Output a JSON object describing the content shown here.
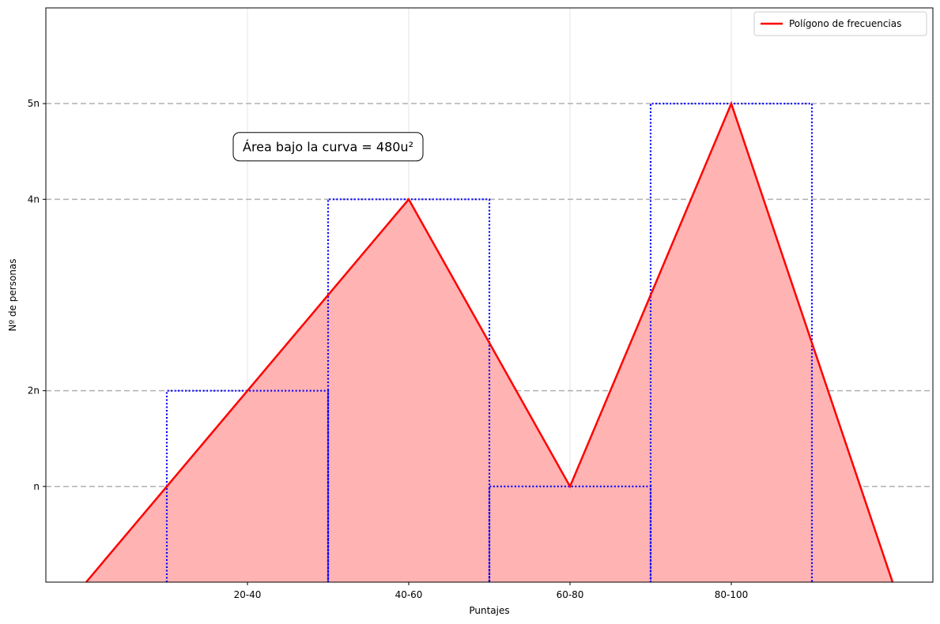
{
  "chart_data": {
    "type": "area",
    "title": "",
    "xlabel": "Puntajes",
    "ylabel": "Nº de personas",
    "xlim": [
      -10,
      100
    ],
    "ylim": [
      0,
      6
    ],
    "x_ticks": [
      {
        "value": 15,
        "label": "20-40"
      },
      {
        "value": 35,
        "label": "40-60"
      },
      {
        "value": 55,
        "label": "60-80"
      },
      {
        "value": 75,
        "label": "80-100"
      }
    ],
    "y_ticks": [
      {
        "value": 1,
        "label": "n"
      },
      {
        "value": 2,
        "label": "2n"
      },
      {
        "value": 4,
        "label": "4n"
      },
      {
        "value": 5,
        "label": "5n"
      }
    ],
    "polygon": {
      "name": "Polígono de frecuencias",
      "color": "#ff0000",
      "fill_color": "#ffb3b3",
      "x": [
        -5,
        15,
        35,
        55,
        75,
        95
      ],
      "y": [
        0,
        2,
        4,
        1,
        5,
        0
      ]
    },
    "histogram": {
      "color": "#0000ff",
      "style": "dotted",
      "bars": [
        {
          "x0": 5,
          "x1": 25,
          "height": 2
        },
        {
          "x0": 25,
          "x1": 45,
          "height": 4
        },
        {
          "x0": 45,
          "x1": 65,
          "height": 1
        },
        {
          "x0": 65,
          "x1": 85,
          "height": 5
        }
      ]
    },
    "annotation": {
      "text": "Área bajo la curva = 480u²",
      "x": 25,
      "y": 4.55
    },
    "grid": true,
    "legend_position": "top-right"
  }
}
